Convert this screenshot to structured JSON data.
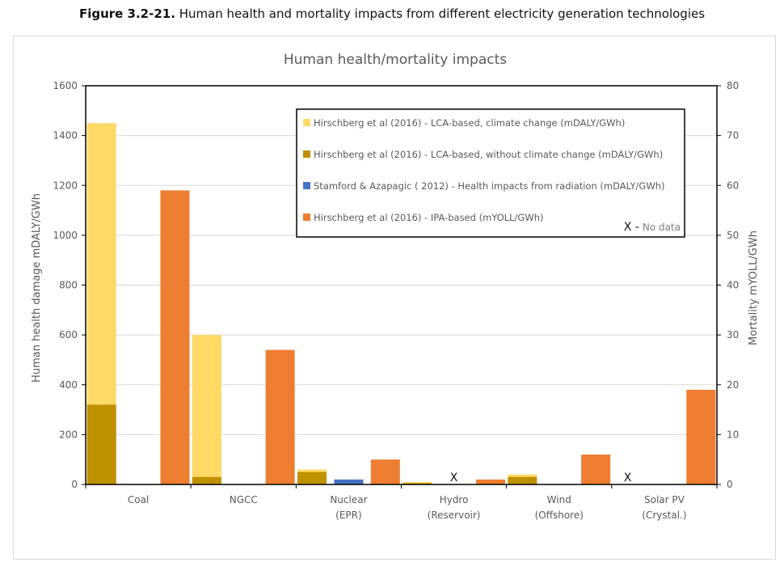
{
  "figure": {
    "number": "Figure 3.2-21.",
    "caption": " Human health and mortality impacts from different electricity generation technologies"
  },
  "chart_data": {
    "type": "bar",
    "title": "Human health/mortality impacts",
    "ylabel": "Human health damage mDALY/GWh",
    "y2label": "Mortality mYOLL/GWh",
    "xlabel": "",
    "ylim": [
      0,
      1600
    ],
    "y2lim": [
      0,
      80
    ],
    "yticks": [
      0,
      200,
      400,
      600,
      800,
      1000,
      1200,
      1400,
      1600
    ],
    "y2ticks": [
      0,
      10,
      20,
      30,
      40,
      50,
      60,
      70,
      80
    ],
    "grid": true,
    "categories": [
      [
        "Coal"
      ],
      [
        "NGCC"
      ],
      [
        "Nuclear",
        "(EPR)"
      ],
      [
        "Hydro",
        "(Reservoir)"
      ],
      [
        "Wind",
        "(Offshore)"
      ],
      [
        "Solar PV",
        "(Crystal.)"
      ]
    ],
    "series": [
      {
        "name": "Hirschberg et al (2016) - LCA-based, climate change (mDALY/GWh)",
        "color": "#FFD966",
        "axis": "left",
        "slot": 0,
        "stack_total": true,
        "values": [
          1450,
          600,
          60,
          10,
          40,
          null
        ]
      },
      {
        "name": "Hirschberg et al (2016) - LCA-based, without climate change (mDALY/GWh)",
        "color": "#BF9000",
        "axis": "left",
        "slot": 0,
        "values": [
          320,
          30,
          50,
          5,
          30,
          null
        ]
      },
      {
        "name": "Stamford & Azapagic ( 2012) - Health impacts from radiation (mDALY/GWh)",
        "color": "#4472C4",
        "axis": "left",
        "slot": 1,
        "values": [
          null,
          null,
          20,
          null,
          null,
          null
        ]
      },
      {
        "name": "Hirschberg et al (2016) - IPA-based (mYOLL/GWh)",
        "color": "#ED7D31",
        "axis": "right",
        "slot": 2,
        "values": [
          59,
          27,
          5,
          1,
          6,
          19
        ]
      }
    ],
    "no_data_markers": [
      {
        "category": "Hydro (Reservoir)",
        "slot": 1
      },
      {
        "category": "Solar PV (Crystal.)",
        "slot": 0
      }
    ],
    "legend": {
      "placement": "top-right",
      "no_data_symbol": "X",
      "no_data_dash": " - ",
      "no_data_text": "No data"
    }
  }
}
